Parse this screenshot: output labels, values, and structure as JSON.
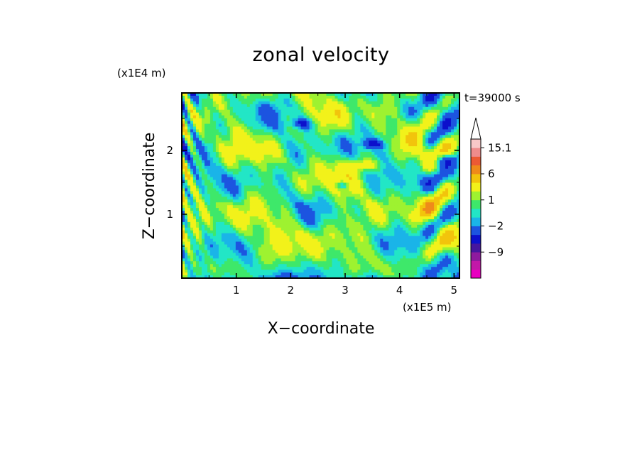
{
  "chart_data": {
    "type": "heatmap",
    "title": "zonal velocity",
    "xlabel": "X−coordinate",
    "ylabel": "Z−coordinate",
    "x_unit": "(x1E5 m)",
    "y_unit": "(x1E4 m)",
    "time_label": "t=39000 s",
    "xlim": [
      0,
      5.1
    ],
    "ylim": [
      0,
      2.9
    ],
    "x_ticks": [
      1,
      2,
      3,
      4,
      5
    ],
    "y_ticks": [
      1,
      2
    ],
    "colorbar": {
      "levels": [
        -15,
        -12,
        -9,
        -6,
        -4,
        -2,
        -1,
        0,
        1,
        2,
        4,
        6,
        9,
        12,
        15.1
      ],
      "colors": [
        "#e800c0",
        "#c218a8",
        "#8e1a9e",
        "#46169e",
        "#0c10cc",
        "#1c54e0",
        "#1ab4e8",
        "#22e6c6",
        "#3ee86a",
        "#9ef230",
        "#f2f21a",
        "#f2c40c",
        "#ef8a1a",
        "#ec5a34",
        "#ef8c8c",
        "#f8c8c8"
      ],
      "tick_labels": [
        "15.1",
        "6",
        "1",
        "−2",
        "−9"
      ],
      "tick_values": [
        15.1,
        6,
        1,
        -2,
        -9
      ],
      "extend": "max"
    }
  }
}
